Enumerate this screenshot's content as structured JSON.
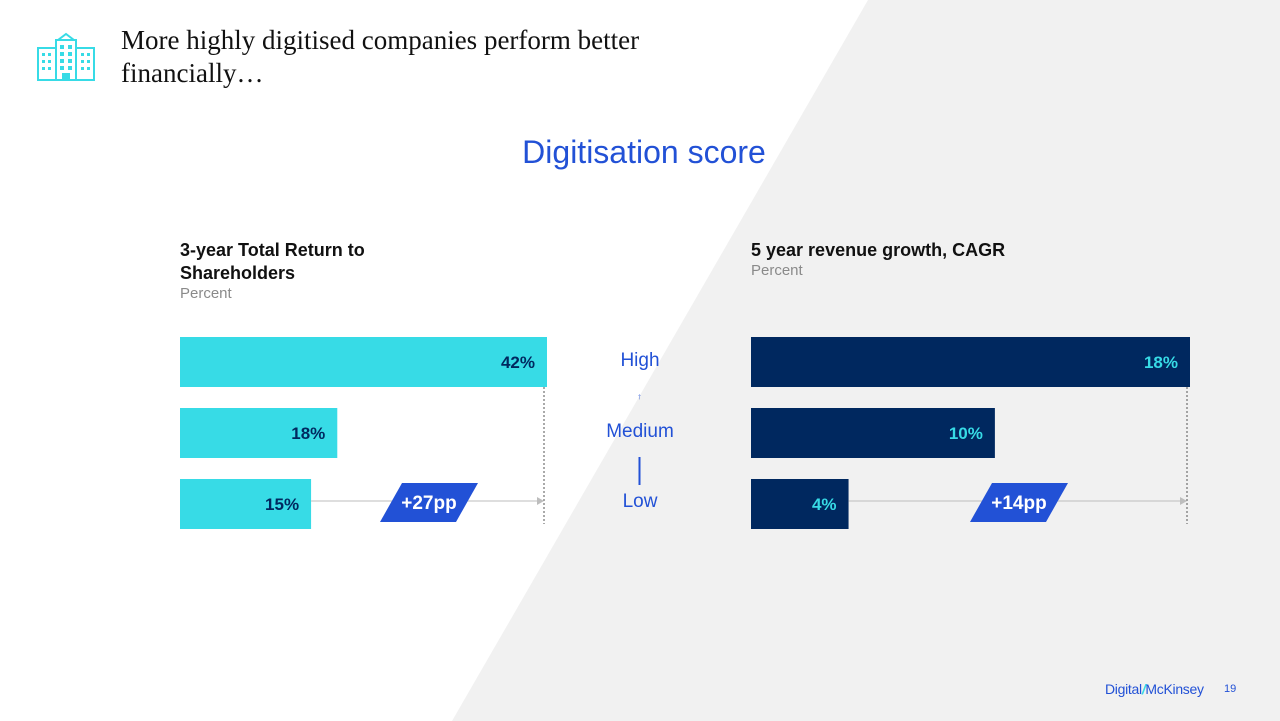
{
  "slide": {
    "title": "More highly digitised companies perform better financially…",
    "subtitle": "Digitisation score",
    "footer_brand_a": "Digital",
    "footer_brand_sep": "/",
    "footer_brand_b": "McKinsey",
    "page_number": "19",
    "icon": "office-building-icon",
    "colors": {
      "cyan": "#37dbe6",
      "navy": "#00285f",
      "accent_blue": "#2251d6",
      "bg_gray": "#f1f1f1"
    }
  },
  "levels": {
    "high": "High",
    "medium": "Medium",
    "low": "Low"
  },
  "chart_data": [
    {
      "type": "bar",
      "title": "3-year Total Return to Shareholders",
      "ylabel": "Percent",
      "categories": [
        "High",
        "Medium",
        "Low"
      ],
      "values": [
        42,
        18,
        15
      ],
      "labels": [
        "42%",
        "18%",
        "15%"
      ],
      "difference_label": "+27pp",
      "xlim": [
        0,
        42
      ],
      "bar_color": "#37dbe6",
      "label_color": "#00285f"
    },
    {
      "type": "bar",
      "title": "5 year revenue growth, CAGR",
      "ylabel": "Percent",
      "categories": [
        "High",
        "Medium",
        "Low"
      ],
      "values": [
        18,
        10,
        4
      ],
      "labels": [
        "18%",
        "10%",
        "4%"
      ],
      "difference_label": "+14pp",
      "xlim": [
        0,
        18
      ],
      "bar_color": "#00285f",
      "label_color": "#37dbe6"
    }
  ]
}
